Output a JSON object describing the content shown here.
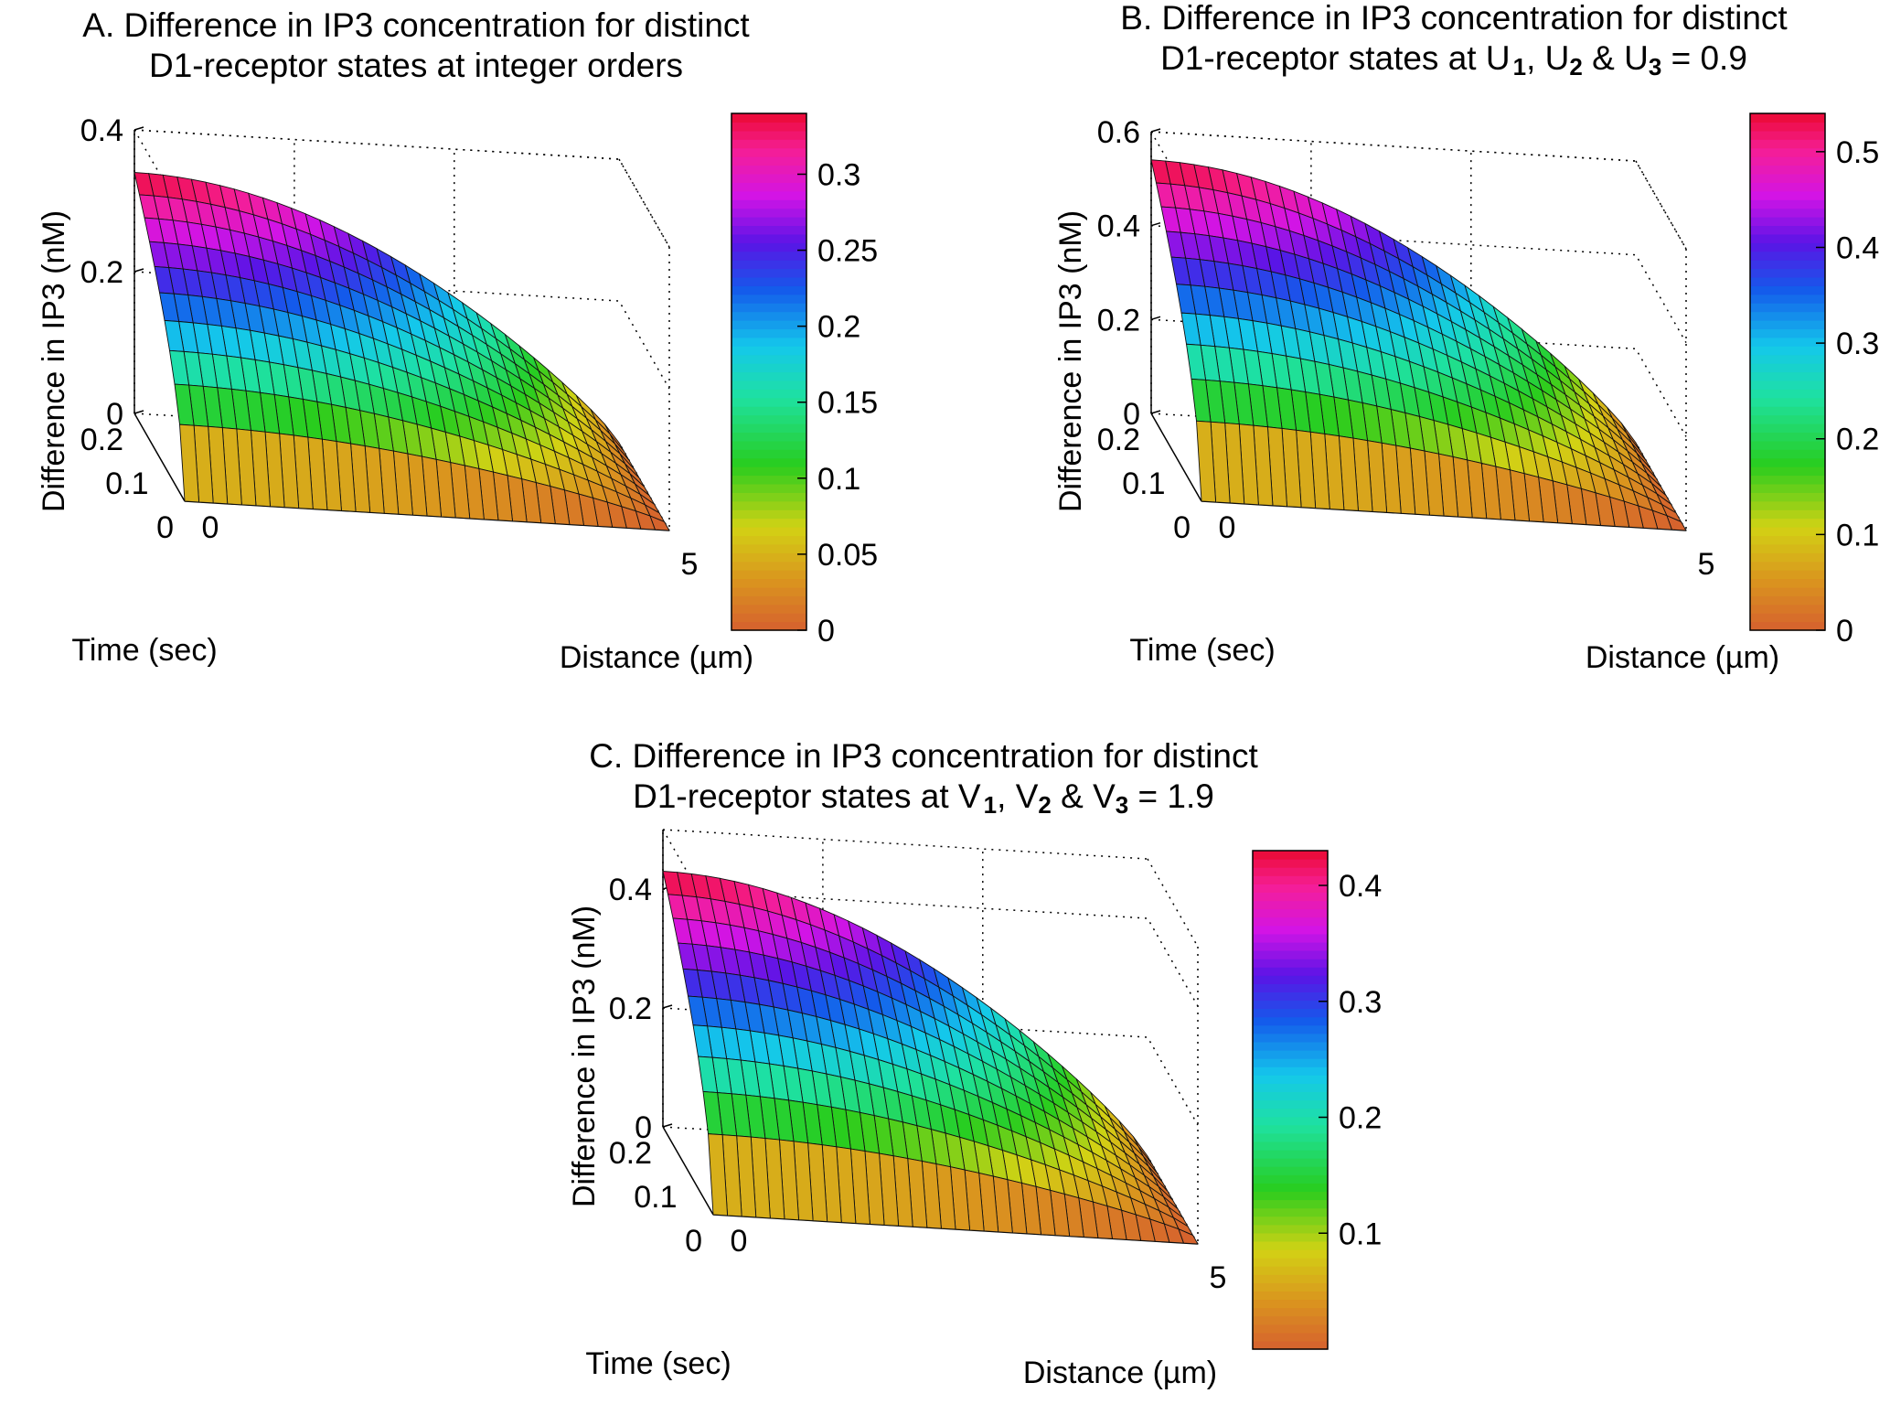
{
  "chart_data": [
    {
      "type": "surface",
      "id": "a",
      "title_prefix": "A. Difference in IP3 concentration for distinct",
      "title_line2": "D1-receptor states at integer orders",
      "xlabel": "Distance (µm)",
      "ylabel": "Time (sec)",
      "zlabel": "Difference in IP3 (nM)",
      "xlim": [
        0,
        5
      ],
      "ylim": [
        0,
        0.2
      ],
      "zlim": [
        0,
        0.4
      ],
      "xticks": [
        "0",
        "5"
      ],
      "yticks": [
        "0",
        "0.1",
        "0.2"
      ],
      "zticks": [
        "0",
        "0.2",
        "0.4"
      ],
      "z_max": 0.34,
      "colorbar": {
        "min": 0,
        "max": 0.34,
        "ticks": [
          "0",
          "0.05",
          "0.1",
          "0.15",
          "0.2",
          "0.25",
          "0.3"
        ],
        "values": [
          0,
          0.05,
          0.1,
          0.15,
          0.2,
          0.25,
          0.3
        ]
      }
    },
    {
      "type": "surface",
      "id": "b",
      "title_prefix": "B. Difference in IP3 concentration for distinct",
      "title_line2_a": "D1-receptor states at U",
      "title_sub1": "1",
      "title_mid1": ", U",
      "title_sub2": "2",
      "title_mid2": " & U",
      "title_sub3": "3",
      "title_end": " = 0.9",
      "xlabel": "Distance (µm)",
      "ylabel": "Time (sec)",
      "zlabel": "Difference in IP3 (nM)",
      "xlim": [
        0,
        5
      ],
      "ylim": [
        0,
        0.2
      ],
      "zlim": [
        0,
        0.6
      ],
      "xticks": [
        "0",
        "5"
      ],
      "yticks": [
        "0",
        "0.1",
        "0.2"
      ],
      "zticks": [
        "0",
        "0.2",
        "0.4",
        "0.6"
      ],
      "z_max": 0.54,
      "colorbar": {
        "min": 0,
        "max": 0.54,
        "ticks": [
          "0",
          "0.1",
          "0.2",
          "0.3",
          "0.4",
          "0.5"
        ],
        "values": [
          0,
          0.1,
          0.2,
          0.3,
          0.4,
          0.5
        ]
      }
    },
    {
      "type": "surface",
      "id": "c",
      "title_prefix": "C. Difference in IP3 concentration for distinct",
      "title_line2_a": "D1-receptor states at V",
      "title_sub1": "1",
      "title_mid1": ", V",
      "title_sub2": "2",
      "title_mid2": " & V",
      "title_sub3": "3",
      "title_end": " = 1.9",
      "xlabel": "Distance (µm)",
      "ylabel": "Time (sec)",
      "zlabel": "Difference in IP3 (nM)",
      "xlim": [
        0,
        5
      ],
      "ylim": [
        0,
        0.2
      ],
      "zlim": [
        0,
        0.5
      ],
      "xticks": [
        "0",
        "5"
      ],
      "yticks": [
        "0",
        "0.1",
        "0.2"
      ],
      "zticks": [
        "0",
        "0.2",
        "0.4"
      ],
      "z_max": 0.43,
      "colorbar": {
        "min": 0,
        "max": 0.43,
        "ticks": [
          "0.1",
          "0.2",
          "0.3",
          "0.4"
        ],
        "values": [
          0.1,
          0.2,
          0.3,
          0.4
        ]
      }
    }
  ]
}
